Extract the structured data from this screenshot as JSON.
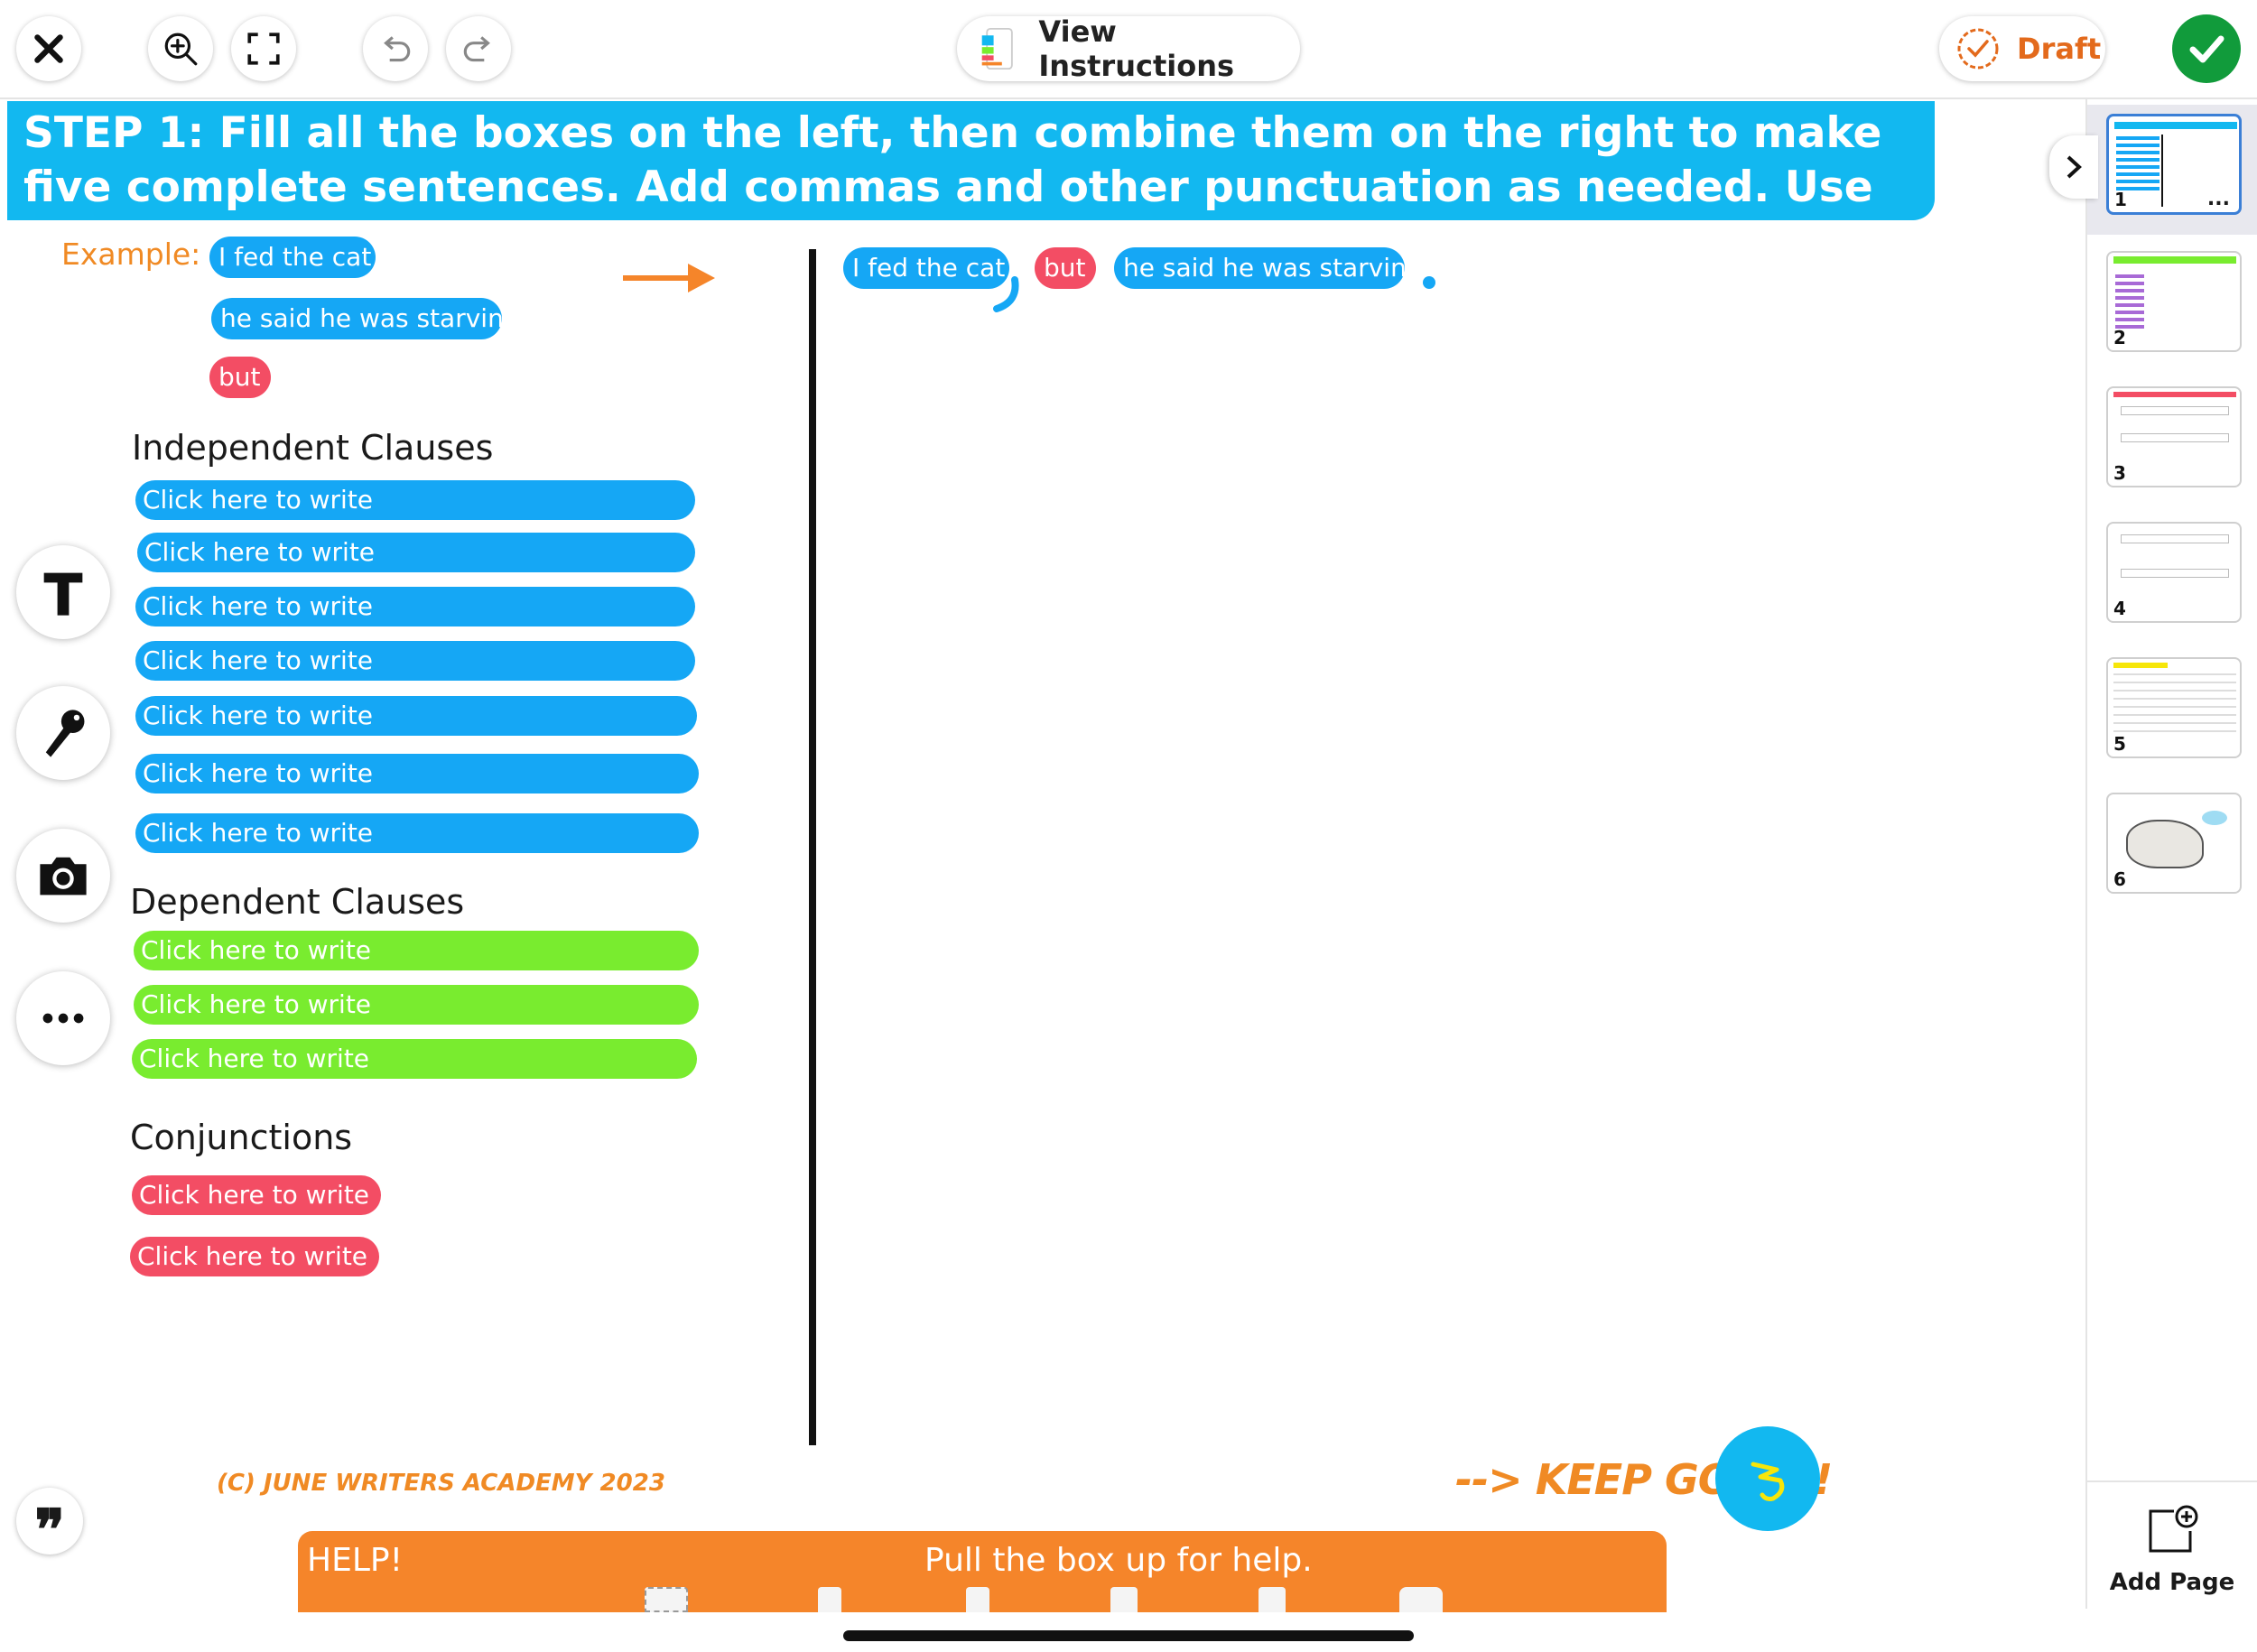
{
  "toolbar": {
    "close": "close-icon",
    "zoom": "zoom-in-icon",
    "fullscreen": "fullscreen-icon",
    "undo": "undo-icon",
    "redo": "redo-icon",
    "instructions_label": "View Instructions",
    "draft_label": "Draft",
    "done": "checkmark-icon"
  },
  "banner": {
    "text": "STEP 1: Fill all the boxes on the left, then combine them on the right to make five complete sentences. Add commas and other punctuation as needed. Use all your boxes."
  },
  "example": {
    "label": "Example:",
    "clause1": "I fed the cat",
    "clause2": "he said he was starving",
    "conjunction": "but"
  },
  "combined": {
    "part1": "I fed the cat",
    "conjunction": "but",
    "part2": "he said he was starving"
  },
  "sections": {
    "independent_title": "Independent Clauses",
    "dependent_title": "Dependent Clauses",
    "conjunctions_title": "Conjunctions"
  },
  "independent_boxes": [
    "Click here to write",
    "Click here to write",
    "Click here to write",
    "Click here to write",
    "Click here to write",
    "Click here to write",
    "Click here to write"
  ],
  "dependent_boxes": [
    "Click here to write",
    "Click here to write",
    "Click here to write"
  ],
  "conjunction_boxes": [
    "Click here to write",
    "Click here to write"
  ],
  "tools": [
    "text-tool-icon",
    "microphone-icon",
    "camera-icon",
    "more-icon"
  ],
  "footer": {
    "copyright": "(C) JUNE WRITERS ACADEMY 2023",
    "keep_going": "--> KEEP GOING!",
    "help_label": "HELP!",
    "help_hint": "Pull the box up for help."
  },
  "pages": {
    "items": [
      {
        "number": "1",
        "more": "..."
      },
      {
        "number": "2"
      },
      {
        "number": "3"
      },
      {
        "number": "4"
      },
      {
        "number": "5"
      },
      {
        "number": "6"
      }
    ],
    "add_page_label": "Add Page"
  },
  "colors": {
    "banner": "#12b8f0",
    "independent": "#15a7f5",
    "dependent": "#79ec2f",
    "conjunction": "#f34d64",
    "accent_orange": "#f5852a",
    "done_green": "#119b3b"
  }
}
